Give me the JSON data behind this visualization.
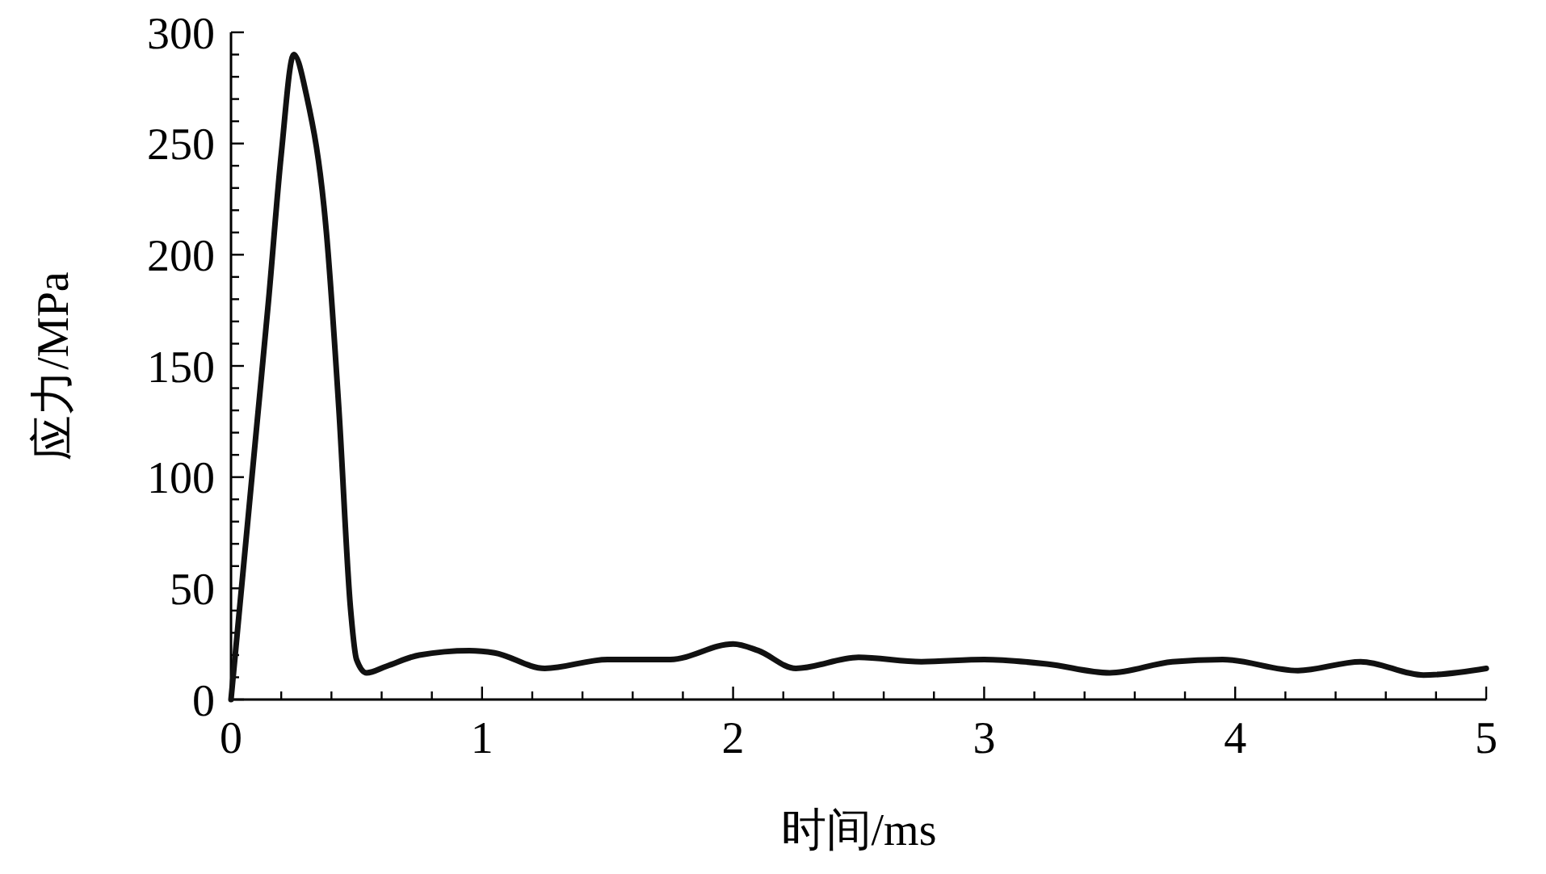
{
  "chart_data": {
    "type": "line",
    "xlabel": "时间/ms",
    "ylabel": "应力/MPa",
    "xlim": [
      0,
      5
    ],
    "ylim": [
      0,
      300
    ],
    "xticks": [
      0,
      {
        "value": 0.2,
        "label": null
      },
      {
        "value": 0.4,
        "label": null
      },
      {
        "value": 0.6,
        "label": null
      },
      {
        "value": 0.8,
        "label": null
      },
      1,
      {
        "value": 1.2,
        "label": null
      },
      {
        "value": 1.4,
        "label": null
      },
      {
        "value": 1.6,
        "label": null
      },
      {
        "value": 1.8,
        "label": null
      },
      2,
      {
        "value": 2.2,
        "label": null
      },
      {
        "value": 2.4,
        "label": null
      },
      {
        "value": 2.6,
        "label": null
      },
      {
        "value": 2.8,
        "label": null
      },
      3,
      {
        "value": 3.2,
        "label": null
      },
      {
        "value": 3.4,
        "label": null
      },
      {
        "value": 3.6,
        "label": null
      },
      {
        "value": 3.8,
        "label": null
      },
      4,
      {
        "value": 4.2,
        "label": null
      },
      {
        "value": 4.4,
        "label": null
      },
      {
        "value": 4.6,
        "label": null
      },
      {
        "value": 4.8,
        "label": null
      },
      5
    ],
    "yticks": [
      0,
      {
        "value": 10,
        "label": null
      },
      {
        "value": 20,
        "label": null
      },
      {
        "value": 30,
        "label": null
      },
      {
        "value": 40,
        "label": null
      },
      50,
      {
        "value": 60,
        "label": null
      },
      {
        "value": 70,
        "label": null
      },
      {
        "value": 80,
        "label": null
      },
      {
        "value": 90,
        "label": null
      },
      100,
      {
        "value": 110,
        "label": null
      },
      {
        "value": 120,
        "label": null
      },
      {
        "value": 130,
        "label": null
      },
      {
        "value": 140,
        "label": null
      },
      150,
      {
        "value": 160,
        "label": null
      },
      {
        "value": 170,
        "label": null
      },
      {
        "value": 180,
        "label": null
      },
      {
        "value": 190,
        "label": null
      },
      200,
      {
        "value": 210,
        "label": null
      },
      {
        "value": 220,
        "label": null
      },
      {
        "value": 230,
        "label": null
      },
      {
        "value": 240,
        "label": null
      },
      250,
      {
        "value": 260,
        "label": null
      },
      {
        "value": 270,
        "label": null
      },
      {
        "value": 280,
        "label": null
      },
      {
        "value": 290,
        "label": null
      },
      300
    ],
    "grid": false,
    "marker": "none",
    "line_style": "solid",
    "series": [
      {
        "color": "#111111",
        "x": [
          0,
          0.05,
          0.1,
          0.15,
          0.2,
          0.25,
          0.3,
          0.38,
          0.43,
          0.476,
          0.5,
          0.54,
          0.62,
          0.75,
          0.95,
          1.05,
          1.25,
          1.5,
          1.75,
          2.0,
          2.1,
          2.25,
          2.5,
          2.75,
          3.0,
          3.25,
          3.5,
          3.75,
          3.95,
          4.25,
          4.5,
          4.75,
          5
        ],
        "values": [
          0,
          60,
          120,
          180,
          245,
          290,
          272,
          210,
          130,
          41,
          18,
          12,
          15,
          20,
          22,
          21,
          14,
          18,
          18,
          25,
          22,
          14,
          19,
          17,
          18,
          16,
          12,
          17,
          18,
          13,
          17,
          11,
          14
        ]
      }
    ]
  }
}
